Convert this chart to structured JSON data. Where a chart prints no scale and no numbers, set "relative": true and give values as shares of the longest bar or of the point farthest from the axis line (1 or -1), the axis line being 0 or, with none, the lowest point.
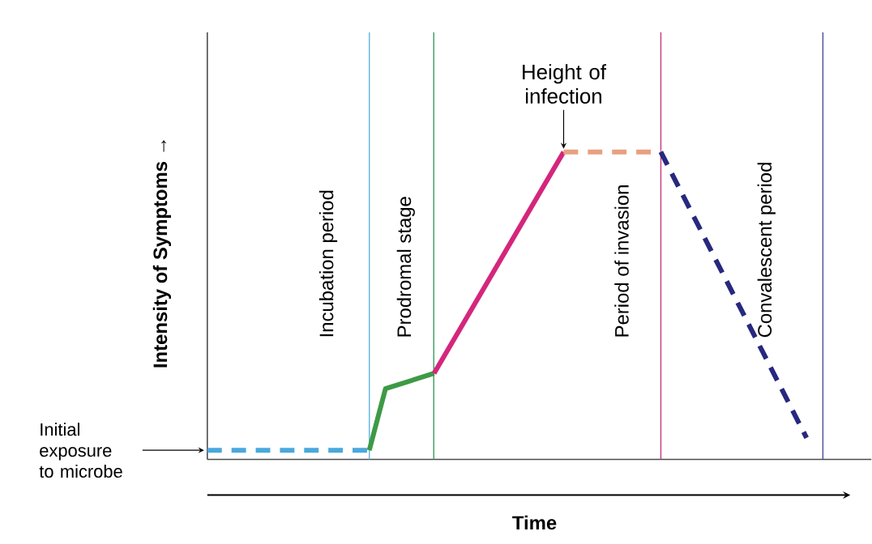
{
  "chart_data": {
    "type": "line",
    "relative": true,
    "ylabel": "Intensity of Symptoms →",
    "xlabel": "Time",
    "tick_labels": false,
    "grid": false,
    "legend": false,
    "marker": "none",
    "categories": [
      null,
      null,
      null,
      null,
      null,
      null,
      null,
      null,
      null,
      null,
      null,
      null,
      null,
      null,
      null,
      null,
      null,
      null,
      null,
      null,
      null,
      null,
      null,
      null,
      null,
      null,
      null,
      null,
      null,
      null,
      null,
      null,
      null,
      null,
      null,
      null,
      null,
      null,
      null,
      null,
      null
    ],
    "series": [
      {
        "color": "#4aa8dc",
        "line_style": "dashed",
        "values": [
          0.03,
          null,
          null,
          null,
          null,
          null,
          null,
          null,
          null,
          null,
          0.03,
          null,
          null,
          null,
          null,
          null,
          null,
          null,
          null,
          null,
          null,
          null,
          null,
          null,
          null,
          null,
          null,
          null,
          null,
          null,
          null,
          null,
          null,
          null,
          null,
          null,
          null,
          null,
          null,
          null,
          null
        ]
      },
      {
        "color": "#3d9a45",
        "line_style": "solid",
        "values": [
          null,
          null,
          null,
          null,
          null,
          null,
          null,
          null,
          null,
          null,
          0.03,
          0.23,
          null,
          null,
          0.28,
          null,
          null,
          null,
          null,
          null,
          null,
          null,
          null,
          null,
          null,
          null,
          null,
          null,
          null,
          null,
          null,
          null,
          null,
          null,
          null,
          null,
          null,
          null,
          null,
          null,
          null
        ]
      },
      {
        "color": "#d4267c",
        "line_style": "solid",
        "values": [
          null,
          null,
          null,
          null,
          null,
          null,
          null,
          null,
          null,
          null,
          null,
          null,
          null,
          null,
          0.28,
          null,
          null,
          null,
          null,
          null,
          null,
          null,
          1,
          null,
          null,
          null,
          null,
          null,
          null,
          null,
          null,
          null,
          null,
          null,
          null,
          null,
          null,
          null,
          null,
          null,
          null
        ]
      },
      {
        "color": "#e8a080",
        "line_style": "dashed",
        "values": [
          null,
          null,
          null,
          null,
          null,
          null,
          null,
          null,
          null,
          null,
          null,
          null,
          null,
          null,
          null,
          null,
          null,
          null,
          null,
          null,
          null,
          null,
          1,
          null,
          null,
          null,
          null,
          null,
          1,
          null,
          null,
          null,
          null,
          null,
          null,
          null,
          null,
          null,
          null,
          null,
          null
        ]
      },
      {
        "color": "#27287f",
        "line_style": "dashed",
        "values": [
          null,
          null,
          null,
          null,
          null,
          null,
          null,
          null,
          null,
          null,
          null,
          null,
          null,
          null,
          null,
          null,
          null,
          null,
          null,
          null,
          null,
          null,
          null,
          null,
          null,
          null,
          null,
          null,
          1,
          null,
          null,
          null,
          null,
          null,
          null,
          null,
          null,
          0.07,
          null,
          null,
          null
        ]
      }
    ],
    "annotations": [
      "Height of infection",
      "Initial exposure to microbe",
      "Incubation period",
      "Prodromal stage",
      "Period of invasion",
      "Convalescent period"
    ]
  }
}
